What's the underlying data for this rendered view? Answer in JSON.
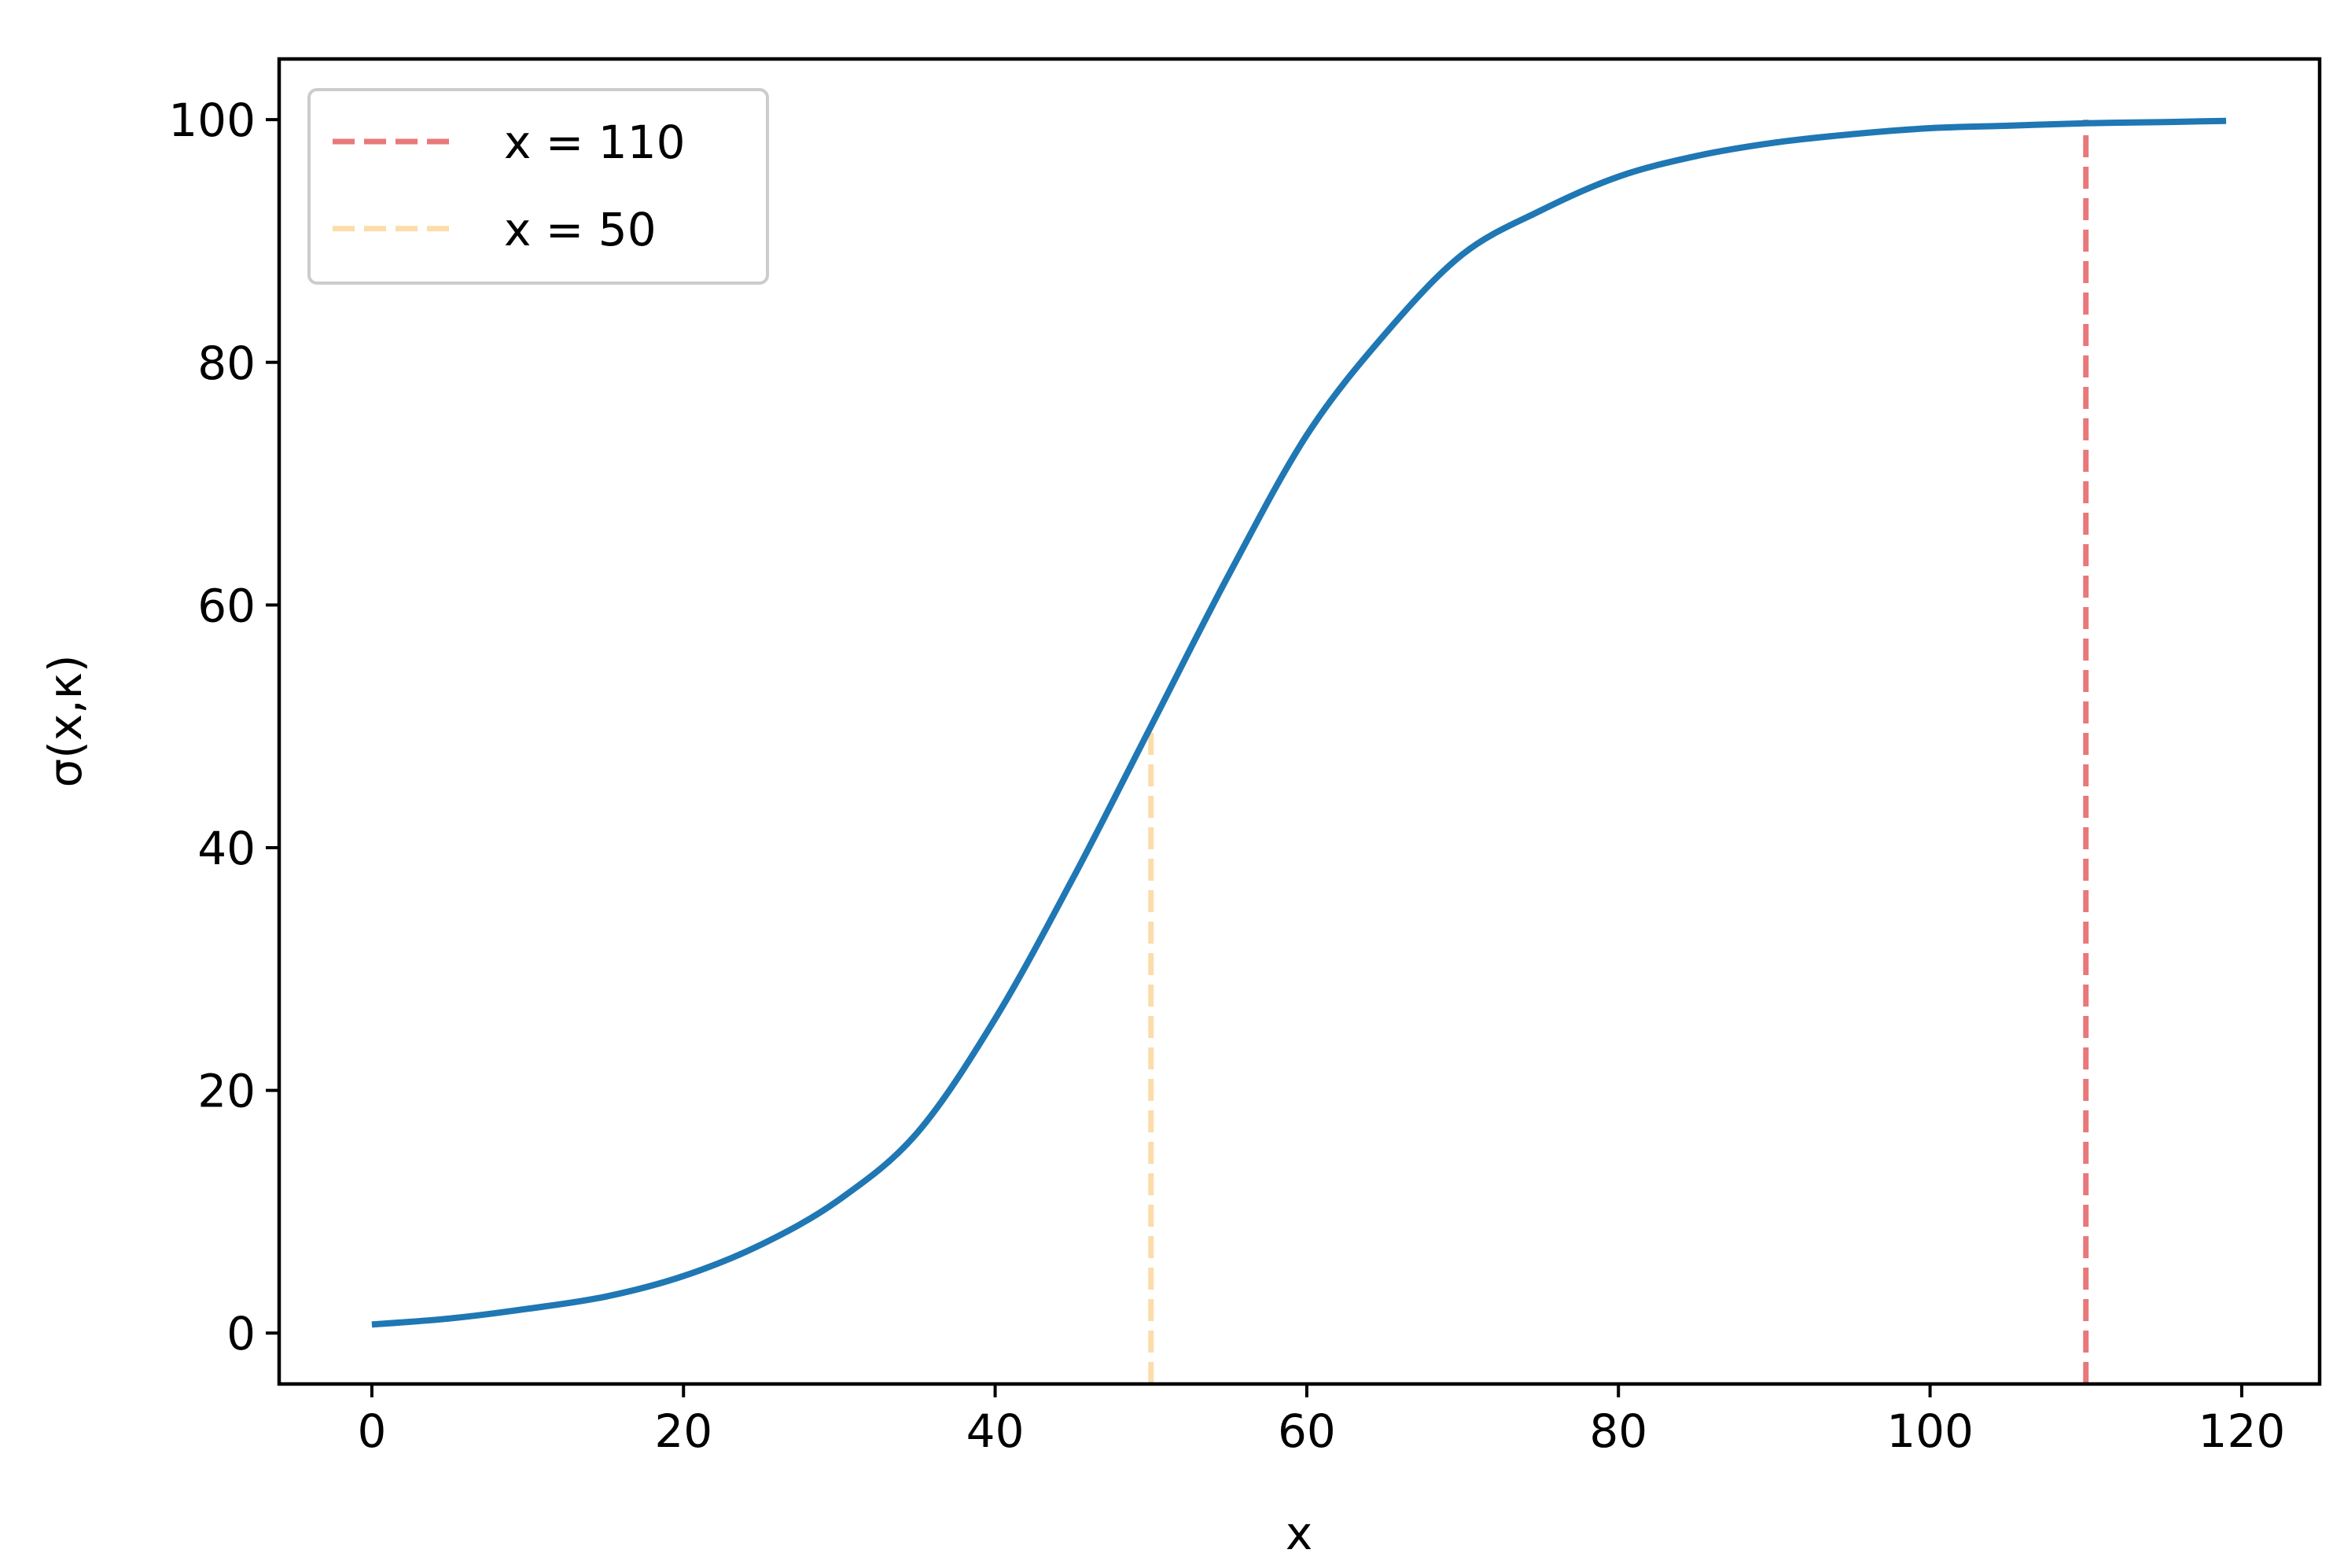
{
  "chart_data": {
    "type": "line",
    "title": "",
    "xlabel": "x",
    "ylabel": "σ(x,κ)",
    "xlim": [
      -5.95,
      125
    ],
    "ylim": [
      -4.2,
      105
    ],
    "x_ticks": [
      0,
      20,
      40,
      60,
      80,
      100,
      120
    ],
    "y_ticks": [
      0,
      20,
      40,
      60,
      80,
      100
    ],
    "grid": false,
    "legend_position": "top-left",
    "series": [
      {
        "type": "line",
        "color": "#1f77b4",
        "x": [
          0,
          5,
          10,
          15,
          20,
          25,
          30,
          35,
          40,
          45,
          50,
          55,
          60,
          65,
          70,
          75,
          80,
          85,
          90,
          95,
          100,
          105,
          110,
          115,
          119
        ],
        "y": [
          0.7,
          1.2,
          2.0,
          3.0,
          4.7,
          7.3,
          11.0,
          16.5,
          25.9,
          37.5,
          50.0,
          62.5,
          74.0,
          82.3,
          88.9,
          92.5,
          95.3,
          97.0,
          98.1,
          98.8,
          99.3,
          99.5,
          99.7,
          99.8,
          99.9
        ]
      }
    ],
    "reference_lines": [
      {
        "name": "x = 110",
        "x": 110,
        "y_range": [
          -4.2,
          100
        ],
        "color": "#e8787a",
        "style": "dashed"
      },
      {
        "name": "x = 50",
        "x": 50,
        "y_range": [
          -4.2,
          50
        ],
        "color": "#fcdcaa",
        "style": "dashed"
      }
    ]
  }
}
